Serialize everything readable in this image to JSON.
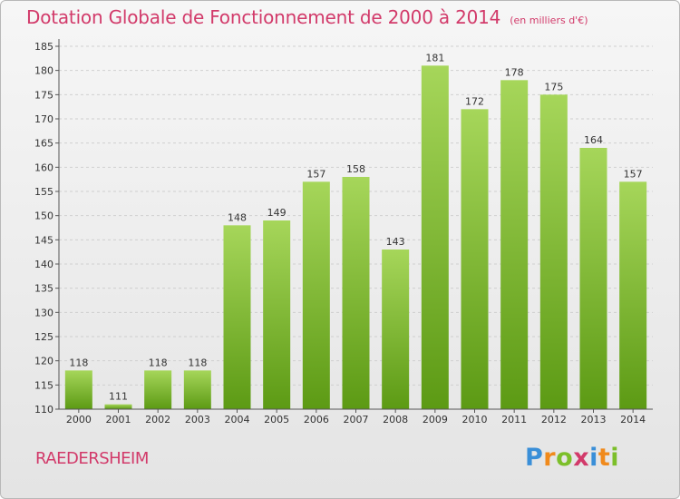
{
  "header": {
    "title": "Dotation Globale de Fonctionnement de 2000 à 2014",
    "subtitle": "(en milliers d'€)"
  },
  "footer": {
    "commune": "RAEDERSHEIM",
    "logo_letters": [
      "P",
      "r",
      "o",
      "x",
      "i",
      "t",
      "i"
    ],
    "logo_colors": [
      "#3a8fd8",
      "#f08a1c",
      "#7cbf2a",
      "#d23a6a",
      "#3a8fd8",
      "#f08a1c",
      "#7cbf2a"
    ]
  },
  "colors": {
    "bar_light": "#a6d65a",
    "bar_dark": "#5c9a14",
    "axis": "#555555",
    "grid": "#cfcfcf",
    "text": "#333333",
    "accent": "#d23a6a"
  },
  "chart_data": {
    "type": "bar",
    "title": "Dotation Globale de Fonctionnement de 2000 à 2014",
    "subtitle": "(en milliers d'€)",
    "categories": [
      "2000",
      "2001",
      "2002",
      "2003",
      "2004",
      "2005",
      "2006",
      "2007",
      "2008",
      "2009",
      "2010",
      "2011",
      "2012",
      "2013",
      "2014"
    ],
    "values": [
      118,
      111,
      118,
      118,
      148,
      149,
      157,
      158,
      143,
      181,
      172,
      178,
      175,
      164,
      157
    ],
    "ylim": [
      110,
      185
    ],
    "yticks": [
      110,
      115,
      120,
      125,
      130,
      135,
      140,
      145,
      150,
      155,
      160,
      165,
      170,
      175,
      180,
      185
    ],
    "grid": true,
    "data_labels": true
  }
}
